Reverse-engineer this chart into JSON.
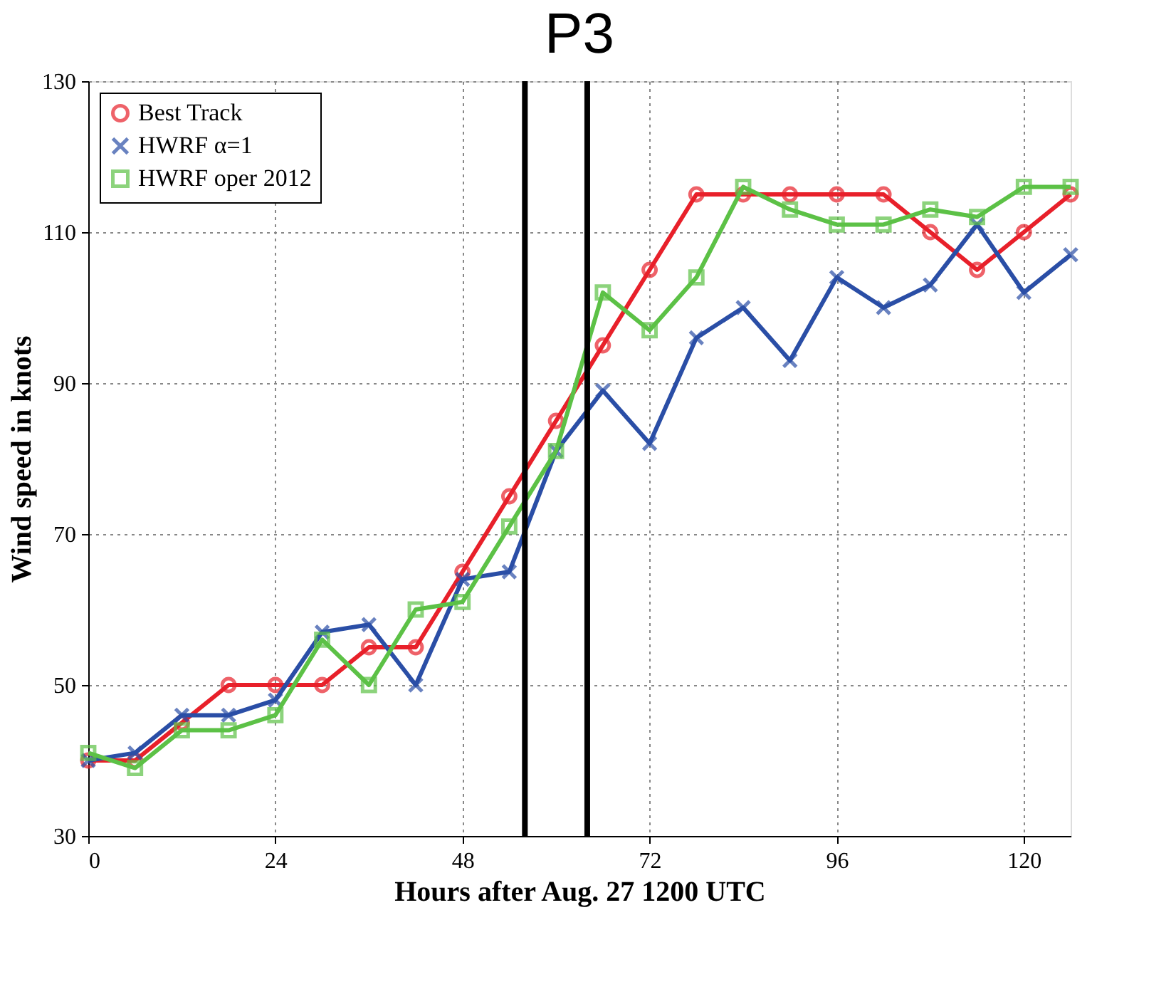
{
  "chart_data": {
    "type": "line",
    "title": "P3",
    "xlabel": "Hours after Aug. 27 1200 UTC",
    "ylabel": "Wind speed in knots",
    "x": [
      0,
      6,
      12,
      18,
      24,
      30,
      36,
      42,
      48,
      54,
      60,
      66,
      72,
      78,
      84,
      90,
      96,
      102,
      108,
      114,
      120,
      126
    ],
    "series": [
      {
        "name": "Best Track",
        "color": "#e8202a",
        "marker": "circle",
        "values": [
          40,
          40,
          45,
          50,
          50,
          50,
          55,
          55,
          65,
          75,
          85,
          95,
          105,
          115,
          115,
          115,
          115,
          115,
          110,
          105,
          110,
          115
        ]
      },
      {
        "name": "HWRF α=1",
        "color": "#2a4ea6",
        "marker": "cross",
        "values": [
          40,
          41,
          46,
          46,
          48,
          57,
          58,
          50,
          64,
          65,
          81,
          89,
          82,
          96,
          100,
          93,
          104,
          100,
          103,
          111,
          102,
          107
        ]
      },
      {
        "name": "HWRF oper 2012",
        "color": "#5cc146",
        "marker": "square",
        "values": [
          41,
          39,
          44,
          44,
          46,
          56,
          50,
          60,
          61,
          71,
          81,
          102,
          97,
          104,
          116,
          113,
          111,
          111,
          113,
          112,
          116,
          116
        ]
      }
    ],
    "xlim": [
      0,
      126
    ],
    "xticks": [
      0,
      24,
      48,
      72,
      96,
      120
    ],
    "ylim": [
      30,
      130
    ],
    "yticks": [
      30,
      50,
      70,
      90,
      110,
      130
    ],
    "ref_lines": [
      {
        "axis": "x",
        "value": 56,
        "color": "#000000"
      },
      {
        "axis": "x",
        "value": 64,
        "color": "#000000"
      }
    ],
    "grid": true,
    "legend": "top left",
    "line_style": "solid"
  }
}
